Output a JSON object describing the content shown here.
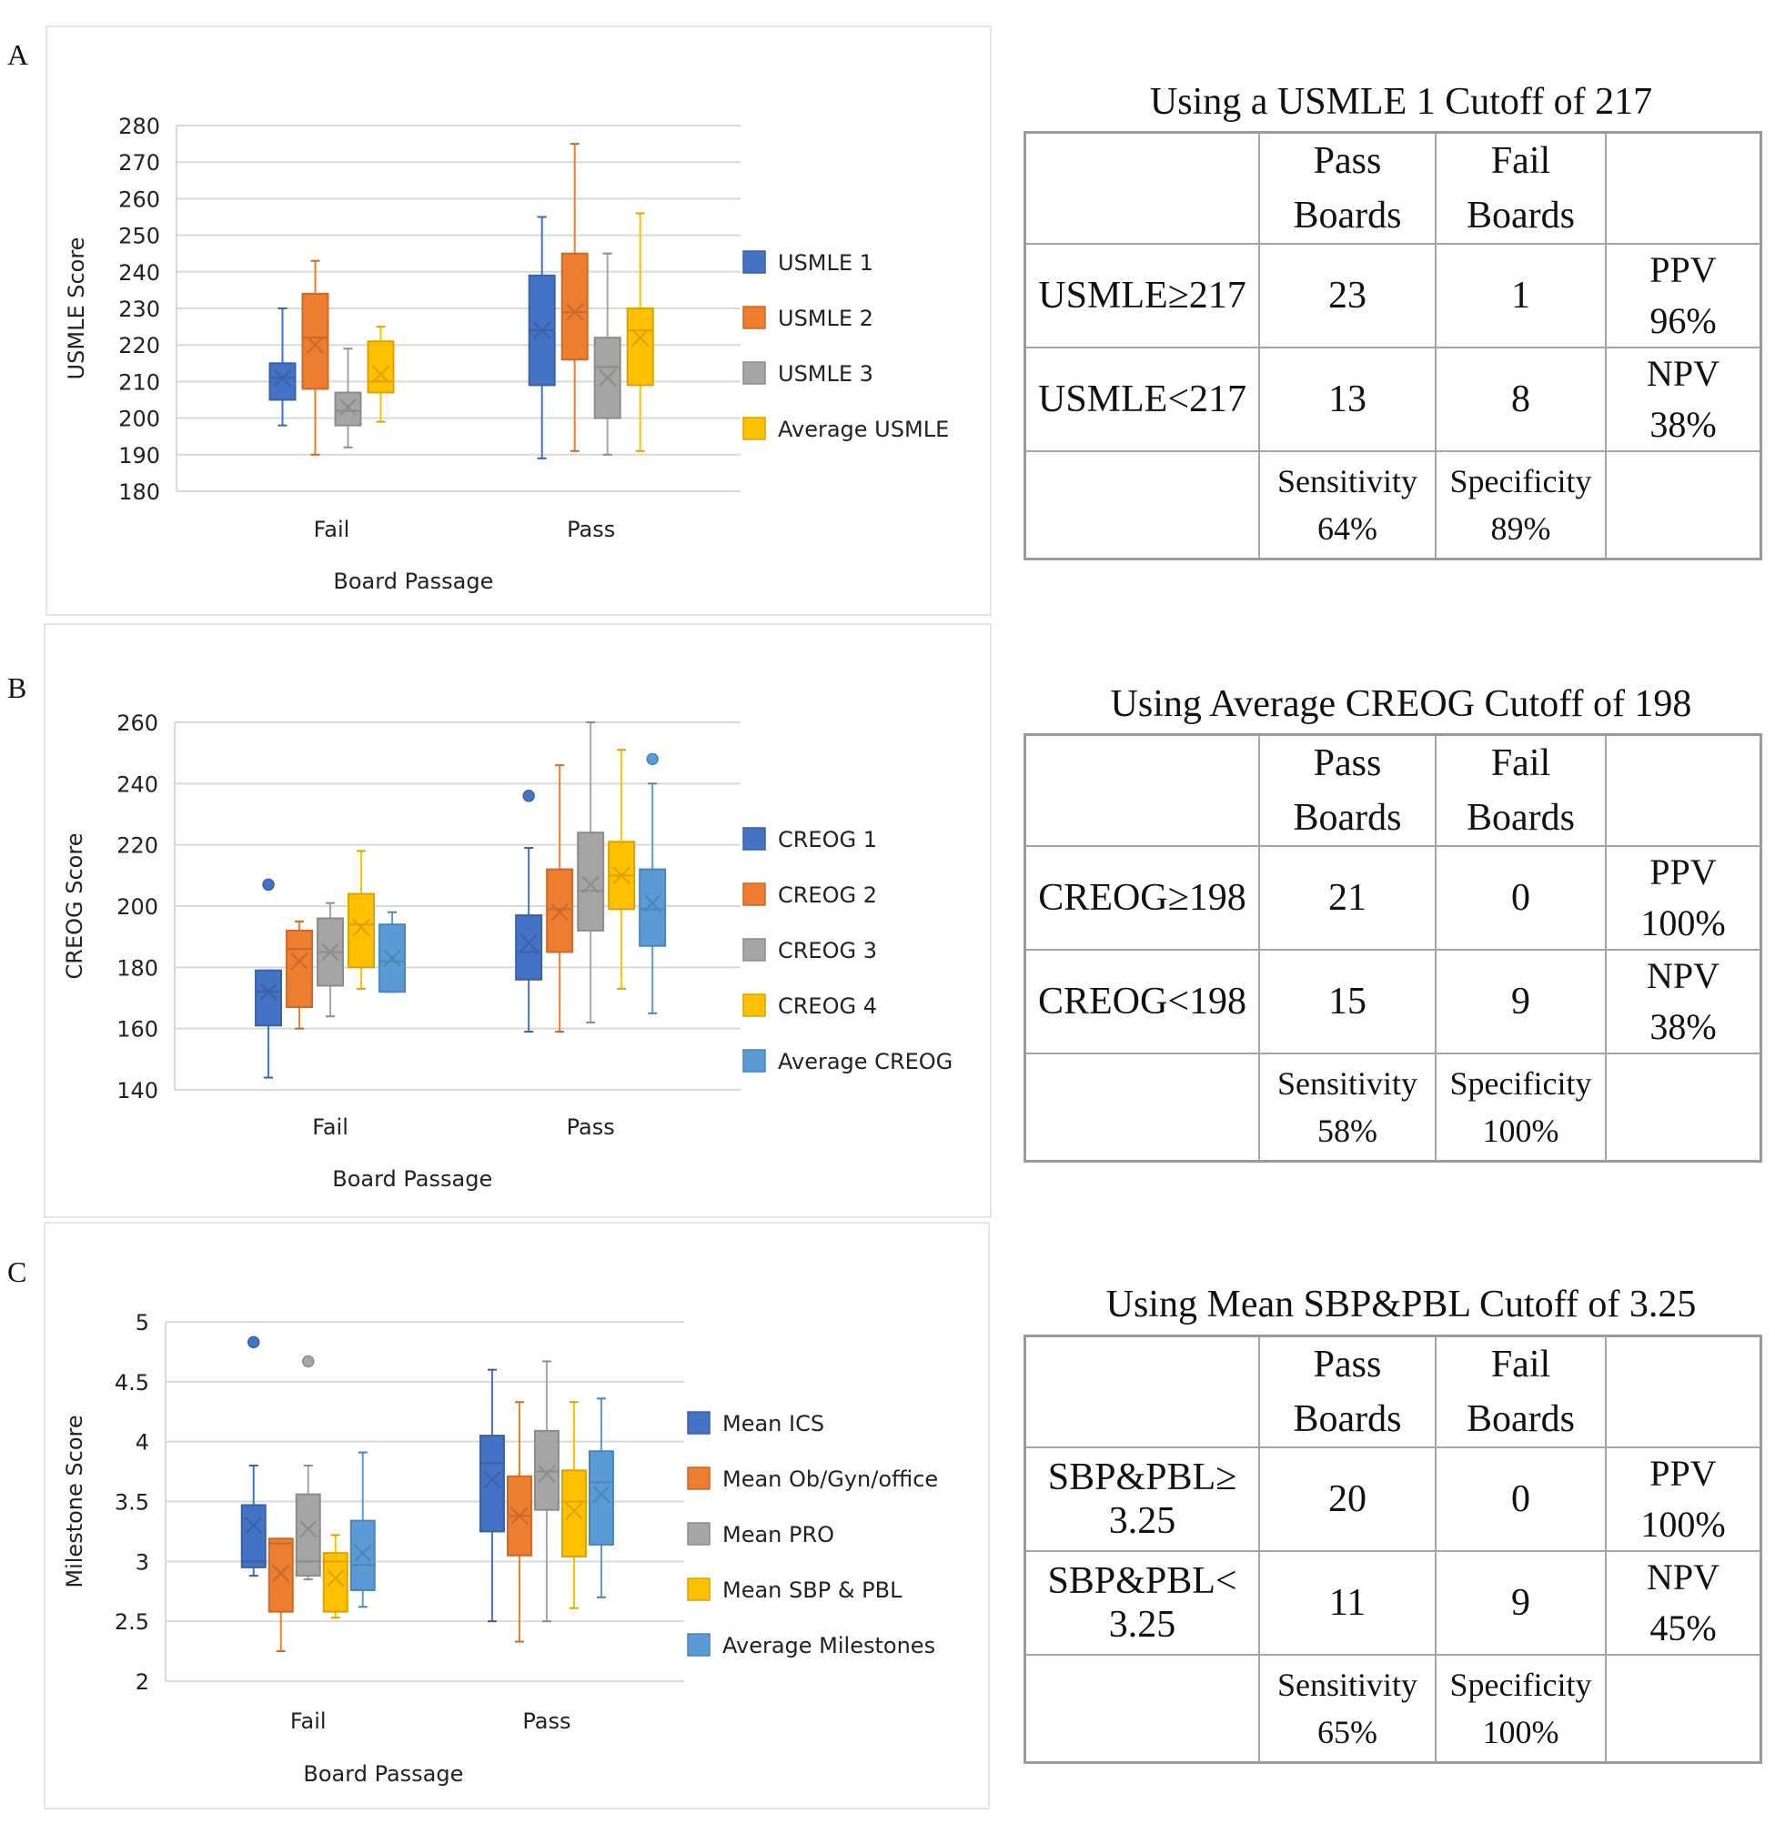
{
  "panels": [
    {
      "letter": "A",
      "chart_data": {
        "type": "box",
        "title": "",
        "xlabel": "Board Passage",
        "ylabel": "USMLE Score",
        "categories": [
          "Fail",
          "Pass"
        ],
        "ylim": [
          180,
          280
        ],
        "yticks": [
          180,
          190,
          200,
          210,
          220,
          230,
          240,
          250,
          260,
          270,
          280
        ],
        "grid": true,
        "legend_position": "right",
        "series": [
          {
            "name": "USMLE 1",
            "color": "#4472C4",
            "boxes": [
              {
                "min": 198,
                "q1": 205,
                "median": 211,
                "q3": 215,
                "max": 230,
                "mean": 211,
                "outliers": []
              },
              {
                "min": 189,
                "q1": 209,
                "median": 224,
                "q3": 239,
                "max": 255,
                "mean": 224,
                "outliers": []
              }
            ]
          },
          {
            "name": "USMLE 2",
            "color": "#ED7D31",
            "boxes": [
              {
                "min": 190,
                "q1": 208,
                "median": 222,
                "q3": 234,
                "max": 243,
                "mean": 220,
                "outliers": []
              },
              {
                "min": 191,
                "q1": 216,
                "median": 229,
                "q3": 245,
                "max": 275,
                "mean": 229,
                "outliers": []
              }
            ]
          },
          {
            "name": "USMLE 3",
            "color": "#A5A5A5",
            "boxes": [
              {
                "min": 192,
                "q1": 198,
                "median": 202,
                "q3": 207,
                "max": 219,
                "mean": 203,
                "outliers": []
              },
              {
                "min": 190,
                "q1": 200,
                "median": 214,
                "q3": 222,
                "max": 245,
                "mean": 211,
                "outliers": []
              }
            ]
          },
          {
            "name": "Average USMLE",
            "color": "#FFC000",
            "boxes": [
              {
                "min": 199,
                "q1": 207,
                "median": 210,
                "q3": 221,
                "max": 225,
                "mean": 212,
                "outliers": []
              },
              {
                "min": 191,
                "q1": 209,
                "median": 224,
                "q3": 230,
                "max": 256,
                "mean": 222,
                "outliers": []
              }
            ]
          }
        ]
      },
      "table": {
        "title": "Using a USMLE 1 Cutoff of 217",
        "header": [
          "",
          "Pass Boards",
          "Fail Boards",
          ""
        ],
        "rows": [
          {
            "label": "USMLE≥217",
            "pass": "23",
            "fail": "1",
            "metric": "PPV",
            "metric_value": "96%"
          },
          {
            "label": "USMLE<217",
            "pass": "13",
            "fail": "8",
            "metric": "NPV",
            "metric_value": "38%"
          }
        ],
        "footer": {
          "sens_label": "Sensitivity",
          "sens_value": "64%",
          "spec_label": "Specificity",
          "spec_value": "89%"
        }
      }
    },
    {
      "letter": "B",
      "chart_data": {
        "type": "box",
        "title": "",
        "xlabel": "Board Passage",
        "ylabel": "CREOG Score",
        "categories": [
          "Fail",
          "Pass"
        ],
        "ylim": [
          140,
          260
        ],
        "yticks": [
          140,
          160,
          180,
          200,
          220,
          240,
          260
        ],
        "grid": true,
        "legend_position": "right",
        "series": [
          {
            "name": "CREOG 1",
            "color": "#4472C4",
            "boxes": [
              {
                "min": 144,
                "q1": 161,
                "median": 172,
                "q3": 179,
                "max": 179,
                "mean": 172,
                "outliers": [
                  207
                ]
              },
              {
                "min": 159,
                "q1": 176,
                "median": 185,
                "q3": 197,
                "max": 219,
                "mean": 188,
                "outliers": [
                  236
                ]
              }
            ]
          },
          {
            "name": "CREOG 2",
            "color": "#ED7D31",
            "boxes": [
              {
                "min": 160,
                "q1": 167,
                "median": 186,
                "q3": 192,
                "max": 195,
                "mean": 182,
                "outliers": []
              },
              {
                "min": 159,
                "q1": 185,
                "median": 199,
                "q3": 212,
                "max": 246,
                "mean": 198,
                "outliers": []
              }
            ]
          },
          {
            "name": "CREOG 3",
            "color": "#A5A5A5",
            "boxes": [
              {
                "min": 164,
                "q1": 174,
                "median": 185,
                "q3": 196,
                "max": 201,
                "mean": 185,
                "outliers": []
              },
              {
                "min": 162,
                "q1": 192,
                "median": 205,
                "q3": 224,
                "max": 260,
                "mean": 207,
                "outliers": []
              }
            ]
          },
          {
            "name": "CREOG 4",
            "color": "#FFC000",
            "boxes": [
              {
                "min": 173,
                "q1": 180,
                "median": 194,
                "q3": 204,
                "max": 218,
                "mean": 193,
                "outliers": []
              },
              {
                "min": 173,
                "q1": 199,
                "median": 210,
                "q3": 221,
                "max": 251,
                "mean": 210,
                "outliers": []
              }
            ]
          },
          {
            "name": "Average CREOG",
            "color": "#5B9BD5",
            "boxes": [
              {
                "min": 172,
                "q1": 172,
                "median": 182,
                "q3": 194,
                "max": 198,
                "mean": 183,
                "outliers": []
              },
              {
                "min": 165,
                "q1": 187,
                "median": 199,
                "q3": 212,
                "max": 240,
                "mean": 201,
                "outliers": [
                  248
                ]
              }
            ]
          }
        ]
      },
      "table": {
        "title": "Using Average CREOG Cutoff of 198",
        "header": [
          "",
          "Pass Boards",
          "Fail Boards",
          ""
        ],
        "rows": [
          {
            "label": "CREOG≥198",
            "pass": "21",
            "fail": "0",
            "metric": "PPV",
            "metric_value": "100%"
          },
          {
            "label": "CREOG<198",
            "pass": "15",
            "fail": "9",
            "metric": "NPV",
            "metric_value": "38%"
          }
        ],
        "footer": {
          "sens_label": "Sensitivity",
          "sens_value": "58%",
          "spec_label": "Specificity",
          "spec_value": "100%"
        }
      }
    },
    {
      "letter": "C",
      "chart_data": {
        "type": "box",
        "title": "",
        "xlabel": "Board Passage",
        "ylabel": "Milestone Score",
        "categories": [
          "Fail",
          "Pass"
        ],
        "ylim": [
          2,
          5
        ],
        "yticks": [
          2,
          2.5,
          3,
          3.5,
          4,
          4.5,
          5
        ],
        "grid": true,
        "legend_position": "right",
        "series": [
          {
            "name": "Mean ICS",
            "color": "#4472C4",
            "boxes": [
              {
                "min": 2.88,
                "q1": 2.95,
                "median": 3.0,
                "q3": 3.47,
                "max": 3.8,
                "mean": 3.3,
                "outliers": [
                  4.83
                ]
              },
              {
                "min": 2.5,
                "q1": 3.25,
                "median": 3.82,
                "q3": 4.05,
                "max": 4.6,
                "mean": 3.68,
                "outliers": []
              }
            ]
          },
          {
            "name": "Mean Ob/Gyn/office",
            "color": "#ED7D31",
            "boxes": [
              {
                "min": 2.25,
                "q1": 2.58,
                "median": 3.15,
                "q3": 3.19,
                "max": 3.19,
                "mean": 2.9,
                "outliers": []
              },
              {
                "min": 2.33,
                "q1": 3.05,
                "median": 3.38,
                "q3": 3.71,
                "max": 4.33,
                "mean": 3.38,
                "outliers": []
              }
            ]
          },
          {
            "name": "Mean PRO",
            "color": "#A5A5A5",
            "boxes": [
              {
                "min": 2.85,
                "q1": 2.88,
                "median": 3.0,
                "q3": 3.56,
                "max": 3.8,
                "mean": 3.27,
                "outliers": [
                  4.67
                ]
              },
              {
                "min": 2.5,
                "q1": 3.43,
                "median": 3.75,
                "q3": 4.09,
                "max": 4.67,
                "mean": 3.73,
                "outliers": []
              }
            ]
          },
          {
            "name": "Mean SBP & PBL",
            "color": "#FFC000",
            "boxes": [
              {
                "min": 2.53,
                "q1": 2.58,
                "median": 3.0,
                "q3": 3.07,
                "max": 3.22,
                "mean": 2.86,
                "outliers": []
              },
              {
                "min": 2.61,
                "q1": 3.04,
                "median": 3.5,
                "q3": 3.76,
                "max": 4.33,
                "mean": 3.42,
                "outliers": []
              }
            ]
          },
          {
            "name": "Average Milestones",
            "color": "#5B9BD5",
            "boxes": [
              {
                "min": 2.62,
                "q1": 2.76,
                "median": 2.97,
                "q3": 3.34,
                "max": 3.91,
                "mean": 3.07,
                "outliers": []
              },
              {
                "min": 2.7,
                "q1": 3.14,
                "median": 3.66,
                "q3": 3.92,
                "max": 4.36,
                "mean": 3.56,
                "outliers": []
              }
            ]
          }
        ]
      },
      "table": {
        "title": "Using Mean SBP&PBL Cutoff of 3.25",
        "header": [
          "",
          "Pass Boards",
          "Fail Boards",
          ""
        ],
        "rows": [
          {
            "label": "SBP&PBL≥ 3.25",
            "pass": "20",
            "fail": "0",
            "metric": "PPV",
            "metric_value": "100%"
          },
          {
            "label": "SBP&PBL< 3.25",
            "pass": "11",
            "fail": "9",
            "metric": "NPV",
            "metric_value": "45%"
          }
        ],
        "footer": {
          "sens_label": "Sensitivity",
          "sens_value": "65%",
          "spec_label": "Specificity",
          "spec_value": "100%"
        }
      }
    }
  ],
  "chart_data": [
    {
      "ref": "panels.0.chart_data"
    },
    {
      "ref": "panels.1.chart_data"
    },
    {
      "ref": "panels.2.chart_data"
    }
  ]
}
